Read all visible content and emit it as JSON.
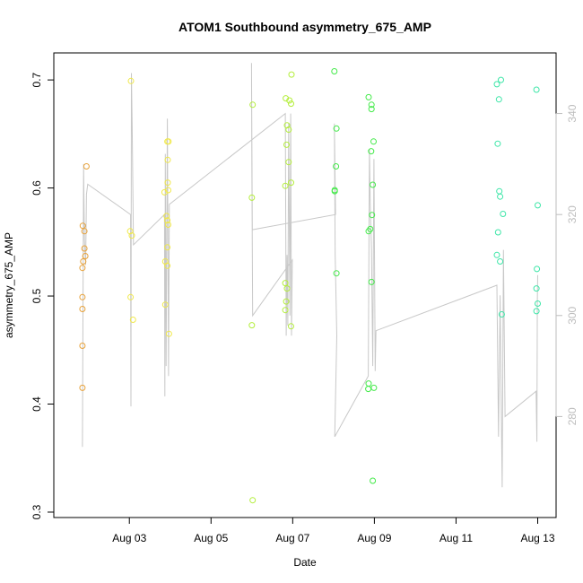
{
  "chart_data": {
    "type": "scatter",
    "title": "ATOM1 Southbound asymmetry_675_AMP",
    "xlabel": "Date",
    "ylabel": "asymmetry_675_AMP",
    "x_unit": "days in August (day-of-month, fractional)",
    "xlim": [
      1.15,
      13.45
    ],
    "ylim": [
      0.295,
      0.725
    ],
    "x_ticks": [
      {
        "value": 3,
        "label": "Aug 03"
      },
      {
        "value": 5,
        "label": "Aug 05"
      },
      {
        "value": 7,
        "label": "Aug 07"
      },
      {
        "value": 9,
        "label": "Aug 09"
      },
      {
        "value": 11,
        "label": "Aug 11"
      },
      {
        "value": 13,
        "label": "Aug 13"
      }
    ],
    "y_ticks": [
      0.3,
      0.4,
      0.5,
      0.6,
      0.7
    ],
    "right_axis": {
      "color": "#bdbdbd",
      "ylim": [
        260,
        352
      ],
      "ticks": [
        280,
        300,
        320,
        340
      ]
    },
    "grid": false,
    "series": [
      {
        "color": "#e8a23a",
        "points": [
          [
            1.95,
            0.62
          ],
          [
            1.86,
            0.565
          ],
          [
            1.9,
            0.56
          ],
          [
            1.9,
            0.544
          ],
          [
            1.92,
            0.537
          ],
          [
            1.87,
            0.532
          ],
          [
            1.85,
            0.526
          ],
          [
            1.85,
            0.499
          ],
          [
            1.85,
            0.488
          ],
          [
            1.85,
            0.454
          ],
          [
            1.85,
            0.415
          ]
        ]
      },
      {
        "color": "#f0e84a",
        "points": [
          [
            3.04,
            0.699
          ],
          [
            3.02,
            0.56
          ],
          [
            3.06,
            0.556
          ],
          [
            3.03,
            0.499
          ],
          [
            3.09,
            0.478
          ],
          [
            3.96,
            0.643
          ],
          [
            3.93,
            0.643
          ],
          [
            3.94,
            0.626
          ],
          [
            3.94,
            0.605
          ],
          [
            3.95,
            0.598
          ],
          [
            3.86,
            0.596
          ],
          [
            3.91,
            0.574
          ],
          [
            3.93,
            0.57
          ],
          [
            3.95,
            0.566
          ],
          [
            3.93,
            0.545
          ],
          [
            3.88,
            0.532
          ],
          [
            3.93,
            0.528
          ],
          [
            3.88,
            0.492
          ],
          [
            3.97,
            0.465
          ]
        ]
      },
      {
        "color": "#b4ee3c",
        "points": [
          [
            6.02,
            0.677
          ],
          [
            6.0,
            0.591
          ],
          [
            6.0,
            0.473
          ],
          [
            6.02,
            0.311
          ],
          [
            6.97,
            0.705
          ],
          [
            6.83,
            0.683
          ],
          [
            6.92,
            0.681
          ],
          [
            6.96,
            0.678
          ],
          [
            6.86,
            0.658
          ],
          [
            6.9,
            0.654
          ],
          [
            6.85,
            0.64
          ],
          [
            6.9,
            0.624
          ],
          [
            6.96,
            0.605
          ],
          [
            6.82,
            0.602
          ],
          [
            6.82,
            0.512
          ],
          [
            6.86,
            0.507
          ],
          [
            6.84,
            0.495
          ],
          [
            6.82,
            0.487
          ],
          [
            6.96,
            0.472
          ]
        ]
      },
      {
        "color": "#44ea4a",
        "points": [
          [
            8.02,
            0.708
          ],
          [
            8.07,
            0.655
          ],
          [
            8.06,
            0.62
          ],
          [
            8.03,
            0.598
          ],
          [
            8.03,
            0.597
          ],
          [
            8.07,
            0.521
          ],
          [
            8.86,
            0.684
          ],
          [
            8.93,
            0.677
          ],
          [
            8.93,
            0.673
          ],
          [
            8.98,
            0.643
          ],
          [
            8.92,
            0.634
          ],
          [
            8.96,
            0.603
          ],
          [
            8.94,
            0.575
          ],
          [
            8.9,
            0.562
          ],
          [
            8.86,
            0.56
          ],
          [
            8.93,
            0.513
          ],
          [
            8.86,
            0.419
          ],
          [
            8.85,
            0.414
          ],
          [
            8.99,
            0.415
          ],
          [
            8.96,
            0.329
          ]
        ]
      },
      {
        "color": "#3ee6a8",
        "points": [
          [
            12.0,
            0.696
          ],
          [
            12.1,
            0.7
          ],
          [
            12.05,
            0.682
          ],
          [
            12.02,
            0.641
          ],
          [
            12.06,
            0.597
          ],
          [
            12.08,
            0.592
          ],
          [
            12.15,
            0.576
          ],
          [
            12.03,
            0.559
          ],
          [
            12.0,
            0.538
          ],
          [
            12.08,
            0.532
          ],
          [
            12.12,
            0.483
          ],
          [
            12.97,
            0.691
          ],
          [
            13.0,
            0.584
          ],
          [
            12.98,
            0.525
          ],
          [
            12.97,
            0.507
          ],
          [
            13.0,
            0.493
          ],
          [
            12.97,
            0.486
          ]
        ]
      }
    ],
    "line_series": {
      "color": "#c8c8c8",
      "axis": "right",
      "points": [
        [
          1.85,
          274
        ],
        [
          1.87,
          330
        ],
        [
          1.9,
          308
        ],
        [
          1.93,
          314
        ],
        [
          1.95,
          324
        ],
        [
          1.97,
          327
        ],
        [
          3.02,
          320
        ],
        [
          3.03,
          280
        ],
        [
          3.05,
          348
        ],
        [
          3.1,
          315
        ],
        [
          3.85,
          320
        ],
        [
          3.86,
          286
        ],
        [
          3.87,
          330
        ],
        [
          3.9,
          290
        ],
        [
          3.92,
          338
        ],
        [
          3.95,
          310
        ],
        [
          3.98,
          302
        ],
        [
          6.8,
          337
        ],
        [
          6.82,
          295
        ],
        [
          6.83,
          310
        ],
        [
          6.85,
          308
        ],
        [
          6.86,
          298
        ],
        [
          6.88,
          335
        ],
        [
          6.9,
          300
        ],
        [
          6.92,
          340
        ],
        [
          6.94,
          296
        ],
        [
          6.96,
          298
        ],
        [
          6.98,
          300
        ],
        [
          6.1,
          305
        ],
        [
          6.05,
          330
        ],
        [
          6.0,
          350
        ],
        [
          5.95,
          345
        ],
        [
          6.02,
          317
        ],
        [
          8.05,
          320
        ],
        [
          8.02,
          325
        ],
        [
          8.08,
          310
        ],
        [
          8.1,
          296
        ],
        [
          8.02,
          276
        ],
        [
          8.05,
          310
        ],
        [
          8.8,
          320
        ],
        [
          8.82,
          292
        ],
        [
          8.85,
          286
        ],
        [
          8.9,
          333
        ],
        [
          8.94,
          325
        ],
        [
          8.96,
          315
        ],
        [
          8.98,
          290
        ],
        [
          9.0,
          290
        ],
        [
          9.02,
          288
        ],
        [
          9.05,
          297
        ],
        [
          8.1,
          296
        ],
        [
          12.0,
          306
        ],
        [
          12.05,
          276
        ],
        [
          12.1,
          285
        ],
        [
          12.12,
          266
        ],
        [
          12.15,
          313
        ],
        [
          12.2,
          280
        ],
        [
          12.95,
          285
        ],
        [
          12.97,
          275
        ],
        [
          12.98,
          300
        ],
        [
          13.0,
          308
        ]
      ],
      "path_order": [
        [
          1.85,
          274
        ],
        [
          1.88,
          330
        ],
        [
          1.9,
          315
        ],
        [
          1.93,
          310
        ],
        [
          1.95,
          324
        ],
        [
          1.98,
          326
        ],
        [
          3.03,
          320
        ],
        [
          3.04,
          282
        ],
        [
          3.05,
          348
        ],
        [
          3.07,
          337
        ],
        [
          3.1,
          314
        ],
        [
          3.86,
          320
        ],
        [
          3.87,
          284
        ],
        [
          3.88,
          332
        ],
        [
          3.9,
          290
        ],
        [
          3.93,
          339
        ],
        [
          3.96,
          288
        ],
        [
          3.98,
          322
        ],
        [
          6.82,
          340
        ],
        [
          6.84,
          296
        ],
        [
          6.86,
          312
        ],
        [
          6.88,
          298
        ],
        [
          6.9,
          338
        ],
        [
          6.93,
          300
        ],
        [
          6.95,
          340
        ],
        [
          6.97,
          296
        ],
        [
          6.99,
          311
        ],
        [
          6.02,
          300
        ],
        [
          6.0,
          330
        ],
        [
          5.99,
          350
        ],
        [
          6.01,
          317
        ],
        [
          8.05,
          320
        ],
        [
          8.02,
          338
        ],
        [
          8.04,
          312
        ],
        [
          8.08,
          296
        ],
        [
          8.03,
          276
        ],
        [
          8.85,
          288
        ],
        [
          8.88,
          333
        ],
        [
          8.9,
          322
        ],
        [
          8.93,
          313
        ],
        [
          8.96,
          290
        ],
        [
          8.99,
          331
        ],
        [
          9.02,
          289
        ],
        [
          9.04,
          297
        ],
        [
          12.0,
          306
        ],
        [
          12.04,
          276
        ],
        [
          12.08,
          304
        ],
        [
          12.1,
          288
        ],
        [
          12.13,
          266
        ],
        [
          12.16,
          313
        ],
        [
          12.2,
          280
        ],
        [
          12.96,
          285
        ],
        [
          12.98,
          275
        ],
        [
          12.99,
          303
        ],
        [
          13.0,
          308
        ]
      ]
    }
  }
}
